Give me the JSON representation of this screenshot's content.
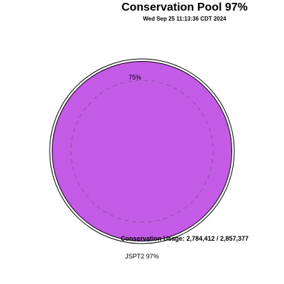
{
  "chart_data": {
    "type": "pie",
    "title": "Conservation Pool 97%",
    "subtitle": "Wed Sep 25 11:13:36 CDT 2024",
    "slices": [
      {
        "label": "JSPT2 97%",
        "value": 97,
        "color": "#c35be6"
      }
    ],
    "reference_ring": {
      "label": "75%",
      "value": 75
    },
    "annotation": "Conservation Usage: 2,784,412 / 2,857,377",
    "fill_color": "#c35be6",
    "outline_color": "#000000"
  }
}
